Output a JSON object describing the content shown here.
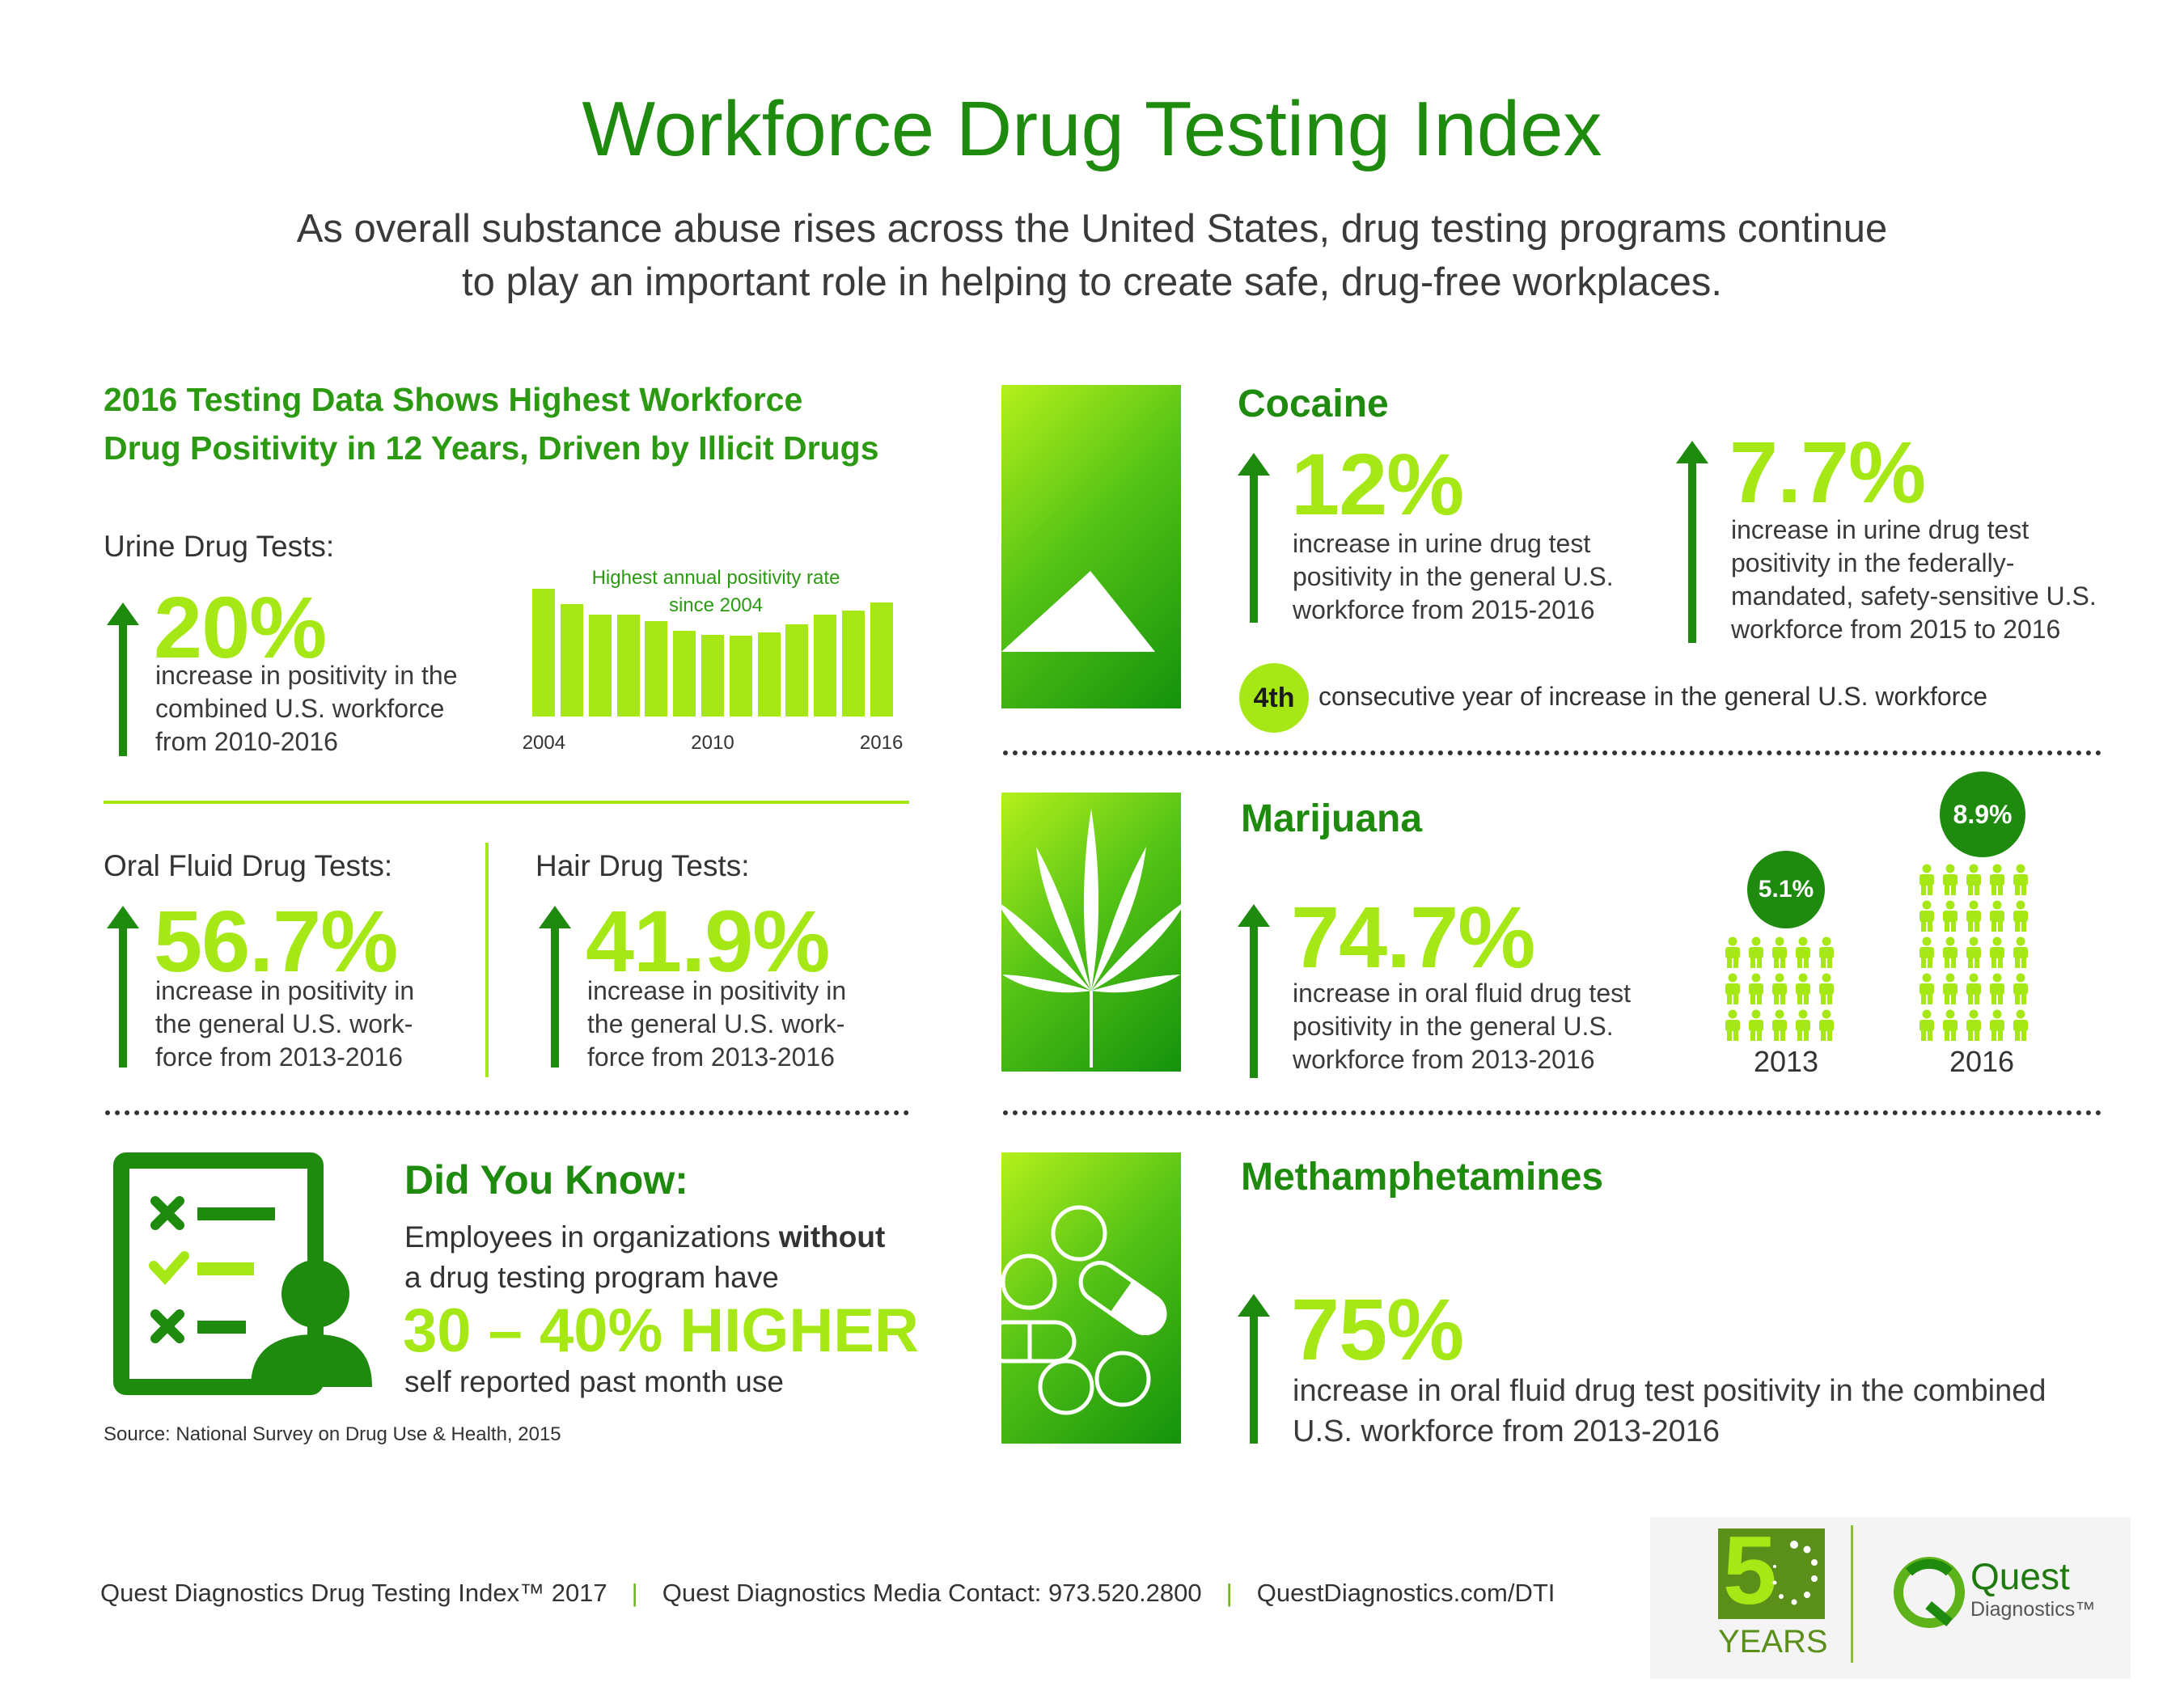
{
  "header": {
    "title": "Workforce Drug Testing Index",
    "subtitle_line1": "As overall substance abuse rises across the United States, drug testing programs continue",
    "subtitle_line2": "to play an important role in helping to create safe, drug-free workplaces."
  },
  "left": {
    "heading_line1": "2016 Testing Data Shows Highest Workforce",
    "heading_line2": "Drug Positivity in 12 Years, Driven by Illicit Drugs",
    "urine": {
      "label": "Urine Drug Tests:",
      "value": "20%",
      "desc1": "increase in positivity in the",
      "desc2": "combined U.S. workforce",
      "desc3": "from 2010-2016"
    },
    "oral": {
      "label": "Oral Fluid Drug Tests:",
      "value": "56.7%",
      "desc1": "increase in positivity in",
      "desc2": "the general U.S. work-",
      "desc3": "force from 2013-2016"
    },
    "hair": {
      "label": "Hair Drug Tests:",
      "value": "41.9%",
      "desc1": "increase in positivity in",
      "desc2": "the general U.S. work-",
      "desc3": "force from 2013-2016"
    },
    "did_you_know": {
      "title": "Did You Know:",
      "line1_a": "Employees in organizations ",
      "line1_b": "without",
      "line2": "a drug testing program have",
      "big": "30 – 40% HIGHER",
      "line3": "self reported past month use",
      "source": "Source: National Survey on Drug Use & Health, 2015"
    }
  },
  "chart_data": {
    "type": "bar",
    "title": "Highest annual positivity rate since 2004",
    "title_line1": "Highest annual positivity rate",
    "title_line2": "since 2004",
    "categories": [
      "2004",
      "2005",
      "2006",
      "2007",
      "2008",
      "2009",
      "2010",
      "2011",
      "2012",
      "2013",
      "2014",
      "2015",
      "2016"
    ],
    "tick_labels": {
      "2004": "2004",
      "2010": "2010",
      "2016": "2016"
    },
    "values": [
      100,
      88,
      80,
      80,
      75,
      67,
      64,
      63,
      66,
      72,
      80,
      83,
      89
    ],
    "ylim": [
      0,
      100
    ],
    "grid": false,
    "color": "#a5e816"
  },
  "cocaine": {
    "title": "Cocaine",
    "stat1": {
      "value": "12%",
      "desc1": "increase in urine drug test",
      "desc2": "positivity in the general U.S.",
      "desc3": "workforce from 2015-2016"
    },
    "stat2": {
      "value": "7.7%",
      "desc1": "increase in urine drug test",
      "desc2": "positivity in the federally-",
      "desc3": "mandated, safety-sensitive U.S.",
      "desc4": "workforce  from 2015 to 2016"
    },
    "badge": "4th",
    "badge_text": "consecutive year of increase in the general U.S. workforce"
  },
  "marijuana": {
    "title": "Marijuana",
    "stat": {
      "value": "74.7%",
      "desc1": "increase in oral fluid drug test",
      "desc2": "positivity in the general U.S.",
      "desc3": "workforce from 2013-2016"
    },
    "year1": {
      "label": "2013",
      "pct": "5.1%",
      "rows": 3
    },
    "year2": {
      "label": "2016",
      "pct": "8.9%",
      "rows": 5
    }
  },
  "meth": {
    "title": "Methamphetamines",
    "stat": {
      "value": "75%",
      "desc1": "increase in oral fluid drug test positivity in the combined",
      "desc2": "U.S. workforce from 2013-2016"
    }
  },
  "footer": {
    "item1": "Quest Diagnostics Drug Testing Index™ 2017",
    "item2": "Quest Diagnostics Media Contact: 973.520.2800",
    "item3": "QuestDiagnostics.com/DTI",
    "sep": "|",
    "logo50_digit": "5",
    "logo50_years": "YEARS",
    "quest_name": "Quest",
    "quest_sub": "Diagnostics™"
  },
  "colors": {
    "dark_green": "#1e8a0e",
    "lime": "#a5e816",
    "text": "#333333"
  }
}
